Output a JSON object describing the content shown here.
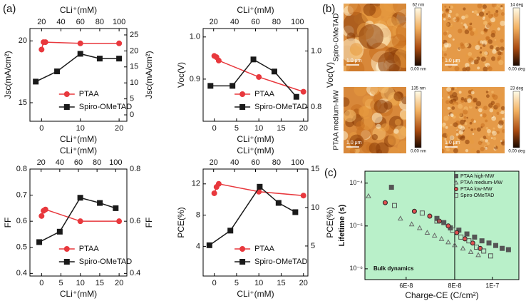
{
  "panel_labels": [
    "(a)",
    "(b)",
    "(c)"
  ],
  "afm": {
    "scale_bar": "1.0 μm",
    "rows": [
      {
        "label": "Spiro-OMeTAD",
        "height_max": "62 nm",
        "height_min": "0.00 nm",
        "phase_max": "14 deg",
        "phase_min": "0.00 deg"
      },
      {
        "label": "PTAA medium-MW",
        "height_max": "135 nm",
        "height_min": "0.00 nm",
        "phase_max": "23 deg",
        "phase_min": "0.00 deg"
      }
    ]
  },
  "chart_data": [
    {
      "type": "line",
      "xlabel": "CLi⁺(mM)",
      "x2label": "CLi⁺(mM)",
      "ylabel": "Jsc(mA/cm²)",
      "y2label": "Jsc(mA/cm²)",
      "xlim": [
        -3,
        22
      ],
      "xticks": [
        0,
        10,
        20
      ],
      "x2lim": [
        8,
        108
      ],
      "x2ticks": [
        20,
        40,
        60,
        80,
        100
      ],
      "ylim": [
        13.5,
        21
      ],
      "yticks": [
        15,
        20
      ],
      "y2lim": [
        -2,
        27
      ],
      "y2ticks": [
        0,
        5,
        10,
        15,
        20,
        25
      ],
      "series": [
        {
          "name": "PTAA",
          "color": "#e8383d",
          "marker": "circle",
          "x": [
            0,
            0.5,
            1,
            10,
            20
          ],
          "values": [
            19.3,
            19.9,
            19.9,
            19.8,
            19.8
          ]
        },
        {
          "name": "Spiro-OMeTAD",
          "color": "#1a1a1a",
          "marker": "square",
          "axis": "y2",
          "xaxis": "x2",
          "x": [
            14,
            36,
            60,
            80,
            100
          ],
          "values": [
            10.4,
            13.6,
            19.1,
            17.6,
            17.6
          ]
        }
      ]
    },
    {
      "type": "line",
      "xlabel": "CLi⁺(mM)",
      "x2label": "CLi⁺(mM)",
      "ylabel": "Voc(V)",
      "y2label": "Voc(V)",
      "xlim": [
        -2.5,
        21
      ],
      "xticks": [
        0,
        5,
        10,
        15,
        20
      ],
      "x2lim": [
        10,
        110
      ],
      "x2ticks": [
        20,
        40,
        60,
        80,
        100
      ],
      "ylim": [
        0.8,
        1.02
      ],
      "yticks": [
        0.9,
        {
          "value": 1,
          "label": "1.0"
        }
      ],
      "y2lim": [
        0.75,
        1.08
      ],
      "y2ticks": [
        0.8,
        {
          "value": 1,
          "label": "1.0"
        }
      ],
      "series": [
        {
          "name": "PTAA",
          "color": "#e8383d",
          "marker": "circle",
          "x": [
            0,
            0.5,
            1,
            10,
            20
          ],
          "values": [
            0.955,
            0.952,
            0.944,
            0.905,
            0.87
          ]
        },
        {
          "name": "Spiro-OMeTAD",
          "color": "#1a1a1a",
          "marker": "square",
          "axis": "y2",
          "xaxis": "x2",
          "x": [
            17,
            38,
            58,
            78,
            99
          ],
          "values": [
            0.876,
            0.876,
            0.97,
            0.927,
            0.837
          ]
        }
      ]
    },
    {
      "type": "line",
      "xlabel": "CLi⁺(mM)",
      "x2label": "CLi⁺(mM)",
      "ylabel": "FF",
      "y2label": "FF",
      "xlim": [
        -3,
        22
      ],
      "xticks": [
        0,
        5,
        10,
        15,
        20
      ],
      "x2lim": [
        8,
        112
      ],
      "x2ticks": [
        20,
        40,
        60,
        80,
        100
      ],
      "ylim": [
        0.39,
        0.8
      ],
      "yticks": [
        0.4,
        0.5,
        0.6,
        0.7,
        0.8
      ],
      "y2lim": [
        0.39,
        0.8
      ],
      "y2ticks": [
        0.4,
        0.6,
        0.8
      ],
      "series": [
        {
          "name": "PTAA",
          "color": "#e8383d",
          "marker": "circle",
          "x": [
            0,
            0.5,
            1,
            10,
            20
          ],
          "values": [
            0.62,
            0.64,
            0.645,
            0.6,
            0.6
          ]
        },
        {
          "name": "Spiro-OMeTAD",
          "color": "#1a1a1a",
          "marker": "square",
          "axis": "y2",
          "xaxis": "x2",
          "x": [
            18,
            40,
            62,
            83,
            100
          ],
          "values": [
            0.52,
            0.56,
            0.69,
            0.67,
            0.65
          ]
        }
      ]
    },
    {
      "type": "line",
      "xlabel": "CLi⁺(mM)",
      "x2label": "CLi⁺(mM)",
      "ylabel": "PCE(%)",
      "y2label": "PCE(%)",
      "xlim": [
        -2.5,
        21
      ],
      "xticks": [
        0,
        5,
        10,
        15,
        20
      ],
      "x2lim": [
        10,
        110
      ],
      "x2ticks": [
        20,
        40,
        60,
        80,
        100
      ],
      "ylim": [
        0.2,
        13.9
      ],
      "yticks": [
        4,
        8,
        12
      ],
      "y2lim": [
        1.1,
        15
      ],
      "y2ticks": [
        5,
        10,
        15
      ],
      "series": [
        {
          "name": "PTAA",
          "color": "#e8383d",
          "marker": "circle",
          "x": [
            0,
            0.5,
            1,
            10,
            20
          ],
          "values": [
            10.8,
            11.6,
            12,
            11,
            10.5
          ]
        },
        {
          "name": "Spiro-OMeTAD",
          "color": "#1a1a1a",
          "marker": "square",
          "axis": "y2",
          "xaxis": "x2",
          "x": [
            16,
            36,
            64,
            82,
            98
          ],
          "values": [
            5.1,
            7.0,
            12.7,
            10.6,
            9.4
          ]
        }
      ]
    },
    {
      "type": "scatter",
      "xlabel": "Charge-CE (C/cm²)",
      "ylabel": "Lifetime (s)",
      "annotation": "Bulk dynamics",
      "xlog": true,
      "ylog": true,
      "background": "#b9f0c9",
      "xlim": [
        4.7e-08,
        1.17e-07
      ],
      "xticks": [
        {
          "value": 6e-08,
          "label": "6E-8"
        },
        {
          "value": 8e-08,
          "label": "8E-8"
        },
        {
          "value": 1e-07,
          "label": "1E-7"
        }
      ],
      "ylim": [
        5.6e-07,
        0.00019
      ],
      "yticks": [
        {
          "value": 0.0001,
          "label": "10⁻⁴"
        },
        {
          "value": 1e-05,
          "label": "10⁻⁵"
        },
        {
          "value": 1e-06,
          "label": "10⁻⁶"
        }
      ],
      "legend": "upper right",
      "series": [
        {
          "name": "PTAA high-MW",
          "color": "#555555",
          "marker": "square",
          "filled": true,
          "x": [
            5.5e-08,
            7.2e-08,
            7.5e-08,
            7.8e-08,
            8.2e-08,
            8.6e-08,
            9e-08,
            9.4e-08,
            9.8e-08,
            1.02e-07,
            1.06e-07,
            1.1e-07
          ],
          "values": [
            8e-05,
            1.5e-05,
            1.2e-05,
            9e-06,
            8e-06,
            6.5e-06,
            5.5e-06,
            4.5e-06,
            4e-06,
            3.5e-06,
            3e-06,
            2.8e-06
          ]
        },
        {
          "name": "PTAA medium-MW",
          "color": "#666666",
          "marker": "triangle",
          "filled": false,
          "x": [
            4.8e-08,
            5.8e-08,
            6.2e-08,
            6.5e-08,
            6.8e-08,
            7.1e-08,
            7.4e-08,
            7.7e-08,
            8e-08,
            8.4e-08,
            8.8e-08,
            9.2e-08
          ],
          "values": [
            5e-05,
            1.5e-05,
            1.1e-05,
            9e-06,
            7e-06,
            6e-06,
            5e-06,
            4.2e-06,
            3.6e-06,
            3e-06,
            2.5e-06,
            2.1e-06
          ]
        },
        {
          "name": "PTAA low-MW",
          "color": "#e05050",
          "marker": "circle",
          "filled": true,
          "x": [
            5.3e-08,
            6.3e-08,
            6.9e-08,
            7.3e-08,
            7.7e-08,
            8.1e-08,
            8.5e-08,
            8.9e-08,
            9.3e-08
          ],
          "values": [
            3.5e-05,
            2.2e-05,
            1.7e-05,
            1.3e-05,
            1e-05,
            7e-06,
            5e-06,
            4e-06,
            3e-06
          ]
        },
        {
          "name": "Spiro-OMeTAD",
          "color": "#555555",
          "marker": "square",
          "filled": false,
          "x": [
            5.6e-08,
            6.6e-08,
            7.2e-08,
            7.9e-08,
            8.3e-08,
            8.7e-08,
            9.1e-08,
            9.5e-08,
            9.9e-08
          ],
          "values": [
            3e-05,
            2e-05,
            1.3e-05,
            8e-06,
            5.5e-06,
            4.5e-06,
            3.2e-06,
            2.6e-06,
            2e-06
          ]
        }
      ]
    }
  ]
}
